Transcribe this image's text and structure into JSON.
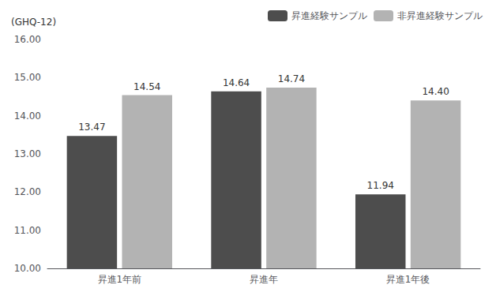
{
  "chart_data": {
    "type": "bar",
    "categories": [
      "昇進1年前",
      "昇進年",
      "昇進1年後"
    ],
    "series": [
      {
        "name": "昇進経験サンプル",
        "color": "#4d4d4d",
        "values": [
          13.47,
          14.64,
          11.94
        ],
        "value_labels": [
          "13.47",
          "14.64",
          "11.94"
        ]
      },
      {
        "name": "非昇進経験サンプル",
        "color": "#b3b3b3",
        "values": [
          14.54,
          14.74,
          14.4
        ],
        "value_labels": [
          "14.54",
          "14.74",
          "14.40"
        ]
      }
    ],
    "ylim": [
      10.0,
      16.0
    ],
    "yticks": [
      {
        "value": 10,
        "label": "10.00"
      },
      {
        "value": 11,
        "label": "11.00"
      },
      {
        "value": 12,
        "label": "12.00"
      },
      {
        "value": 13,
        "label": "13.00"
      },
      {
        "value": 14,
        "label": "14.00"
      },
      {
        "value": 15,
        "label": "15.00"
      },
      {
        "value": 16,
        "label": "16.00"
      }
    ],
    "annotations": [
      "(GHQ-12)"
    ],
    "data_labels": true,
    "legend": "upper right",
    "grid": false
  }
}
